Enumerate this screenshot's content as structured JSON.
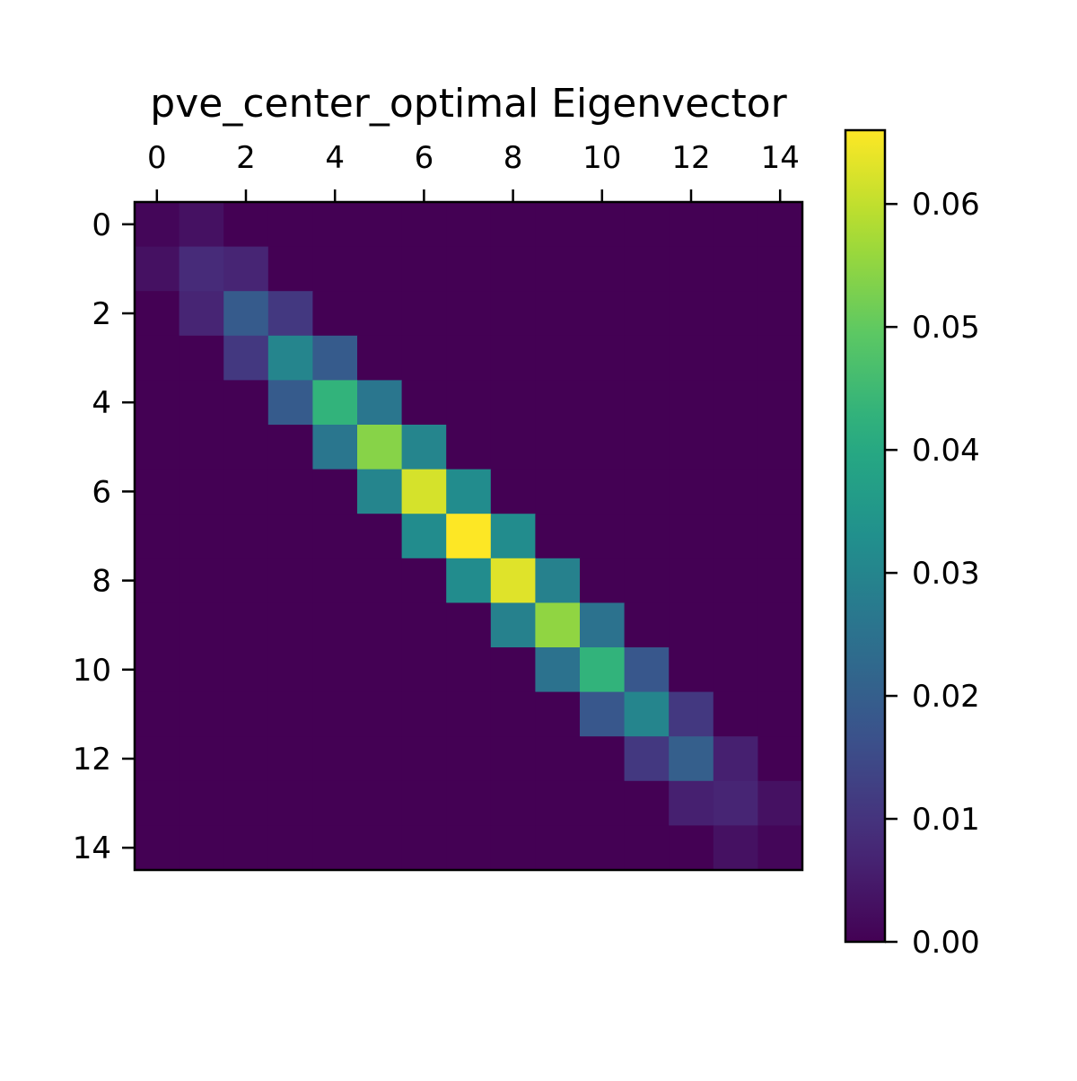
{
  "chart_data": {
    "type": "heatmap",
    "title": "pve_center_optimal Eigenvector",
    "xlabel": "",
    "ylabel": "",
    "x_ticks": [
      0,
      2,
      4,
      6,
      8,
      10,
      12,
      14
    ],
    "y_ticks": [
      0,
      2,
      4,
      6,
      8,
      10,
      12,
      14
    ],
    "x_axis_position": "top",
    "colormap": "viridis",
    "colorbar": {
      "min": 0.0,
      "max": 0.066,
      "ticks": [
        "0.00",
        "0.01",
        "0.02",
        "0.03",
        "0.04",
        "0.05",
        "0.06"
      ],
      "tick_values": [
        0.0,
        0.01,
        0.02,
        0.03,
        0.04,
        0.05,
        0.06
      ]
    },
    "matrix": [
      [
        0.001,
        0.003,
        0,
        0,
        0,
        0,
        0,
        0,
        0,
        0,
        0,
        0,
        0,
        0,
        0
      ],
      [
        0.003,
        0.008,
        0.007,
        0,
        0,
        0,
        0,
        0,
        0,
        0,
        0,
        0,
        0,
        0,
        0
      ],
      [
        0,
        0.007,
        0.019,
        0.011,
        0,
        0,
        0,
        0,
        0,
        0,
        0,
        0,
        0,
        0,
        0
      ],
      [
        0,
        0,
        0.011,
        0.03,
        0.019,
        0,
        0,
        0,
        0,
        0,
        0,
        0,
        0,
        0,
        0
      ],
      [
        0,
        0,
        0,
        0.019,
        0.043,
        0.026,
        0,
        0,
        0,
        0,
        0,
        0,
        0,
        0,
        0
      ],
      [
        0,
        0,
        0,
        0,
        0.026,
        0.054,
        0.03,
        0,
        0,
        0,
        0,
        0,
        0,
        0,
        0
      ],
      [
        0,
        0,
        0,
        0,
        0,
        0.03,
        0.062,
        0.032,
        0,
        0,
        0,
        0,
        0,
        0,
        0
      ],
      [
        0,
        0,
        0,
        0,
        0,
        0,
        0.032,
        0.066,
        0.032,
        0,
        0,
        0,
        0,
        0,
        0
      ],
      [
        0,
        0,
        0,
        0,
        0,
        0,
        0,
        0.032,
        0.063,
        0.029,
        0,
        0,
        0,
        0,
        0
      ],
      [
        0,
        0,
        0,
        0,
        0,
        0,
        0,
        0,
        0.029,
        0.055,
        0.025,
        0,
        0,
        0,
        0
      ],
      [
        0,
        0,
        0,
        0,
        0,
        0,
        0,
        0,
        0,
        0.025,
        0.043,
        0.018,
        0,
        0,
        0
      ],
      [
        0,
        0,
        0,
        0,
        0,
        0,
        0,
        0,
        0,
        0,
        0.018,
        0.03,
        0.011,
        0,
        0
      ],
      [
        0,
        0,
        0,
        0,
        0,
        0,
        0,
        0,
        0,
        0,
        0,
        0.011,
        0.02,
        0.006,
        0
      ],
      [
        0,
        0,
        0,
        0,
        0,
        0,
        0,
        0,
        0,
        0,
        0,
        0,
        0.006,
        0.007,
        0.003
      ],
      [
        0,
        0,
        0,
        0,
        0,
        0,
        0,
        0,
        0,
        0,
        0,
        0,
        0,
        0.003,
        0.001
      ]
    ]
  }
}
